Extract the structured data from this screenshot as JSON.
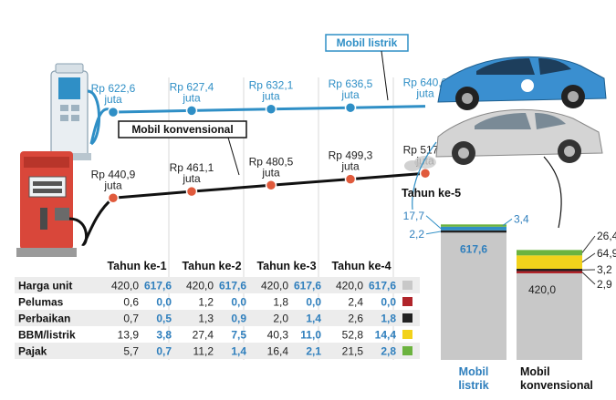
{
  "chart_data": {
    "type": "line",
    "x": [
      "Tahun ke-1",
      "Tahun ke-2",
      "Tahun ke-3",
      "Tahun ke-4",
      "Tahun ke-5"
    ],
    "series": [
      {
        "name": "Mobil listrik",
        "color": "#2f8fc6",
        "values": [
          622.6,
          627.4,
          632.1,
          636.5,
          640.9
        ],
        "value_labels": [
          "Rp 622,6 juta",
          "Rp 627,4 juta",
          "Rp 632,1 juta",
          "Rp 636,5 juta",
          "Rp 640,9 juta"
        ]
      },
      {
        "name": "Mobil konvensional",
        "color": "#111111",
        "marker_color": "#e05a3c",
        "values": [
          440.9,
          461.1,
          480.5,
          499.3,
          517.3
        ],
        "value_labels": [
          "Rp 440,9 juta",
          "Rp 461,1 juta",
          "Rp 480,5 juta",
          "Rp 499,3 juta",
          "Rp 517,3 juta"
        ]
      }
    ],
    "table": {
      "columns": [
        "Tahun ke-1",
        "Tahun ke-2",
        "Tahun ke-3",
        "Tahun ke-4"
      ],
      "rows": [
        {
          "label": "Harga unit",
          "color": "#c8c8c8",
          "konvensional": [
            "420,0",
            "420,0",
            "420,0",
            "420,0"
          ],
          "listrik": [
            "617,6",
            "617,6",
            "617,6",
            "617,6"
          ]
        },
        {
          "label": "Pelumas",
          "color": "#b0242a",
          "konvensional": [
            "0,6",
            "1,2",
            "1,8",
            "2,4"
          ],
          "listrik": [
            "0,0",
            "0,0",
            "0,0",
            "0,0"
          ]
        },
        {
          "label": "Perbaikan",
          "color": "#222222",
          "konvensional": [
            "0,7",
            "1,3",
            "2,0",
            "2,6"
          ],
          "listrik": [
            "0,5",
            "0,9",
            "1,4",
            "1,8"
          ]
        },
        {
          "label": "BBM/listrik",
          "color": "#f2d21b",
          "konvensional": [
            "13,9",
            "27,4",
            "40,3",
            "52,8"
          ],
          "listrik": [
            "3,8",
            "7,5",
            "11,0",
            "14,4"
          ]
        },
        {
          "label": "Pajak",
          "color": "#6cb33f",
          "konvensional": [
            "5,7",
            "11,2",
            "16,4",
            "21,5"
          ],
          "listrik": [
            "0,7",
            "1,4",
            "2,1",
            "2,8"
          ]
        }
      ]
    },
    "year5": {
      "title": "Tahun ke-5",
      "stacks": [
        {
          "name": "Mobil listrik",
          "label_lines": [
            "Mobil",
            "listrik"
          ],
          "segments": [
            {
              "component": "Harga unit",
              "value": 617.6,
              "label": "617,6",
              "color": "#c8c8c8"
            },
            {
              "component": "Perbaikan",
              "value": 2.2,
              "label": "2,2",
              "color": "#222222"
            },
            {
              "component": "BBM/listrik",
              "value": 17.7,
              "label": "17,7",
              "color": "#2f8fc6"
            },
            {
              "component": "Pajak",
              "value": 3.4,
              "label": "3,4",
              "color": "#6cb33f"
            }
          ]
        },
        {
          "name": "Mobil konvensional",
          "label_lines": [
            "Mobil",
            "konvensional"
          ],
          "segments": [
            {
              "component": "Harga unit",
              "value": 420.0,
              "label": "420,0",
              "color": "#c8c8c8"
            },
            {
              "component": "Pelumas",
              "value": 2.9,
              "label": "2,9",
              "color": "#b0242a"
            },
            {
              "component": "Perbaikan",
              "value": 3.2,
              "label": "3,2",
              "color": "#222222"
            },
            {
              "component": "BBM/listrik",
              "value": 64.9,
              "label": "64,9",
              "color": "#f2d21b"
            },
            {
              "component": "Pajak",
              "value": 26.4,
              "label": "26,4",
              "color": "#6cb33f"
            }
          ]
        }
      ]
    }
  }
}
